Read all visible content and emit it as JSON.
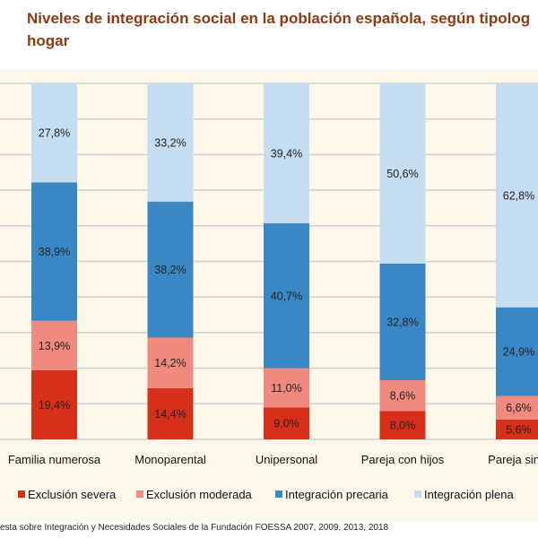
{
  "chart_data": {
    "type": "bar",
    "stacked": true,
    "title": "Niveles de integración social en la población española, según tipología de hogar",
    "title_lines": [
      "Niveles de integración social en la población española, según tipolog",
      "hogar"
    ],
    "categories": [
      "Familia numerosa",
      "Monoparental",
      "Unipersonal",
      "Pareja con hijos",
      "Pareja sin h"
    ],
    "series": [
      {
        "name": "Exclusión severa",
        "color": "#d7301a",
        "values": [
          19.4,
          14.4,
          9.0,
          8.0,
          5.6
        ],
        "labels": [
          "19,4%",
          "14,4%",
          "9,0%",
          "8,0%",
          "5,6%"
        ]
      },
      {
        "name": "Exclusión moderada",
        "color": "#f08a7e",
        "values": [
          13.9,
          14.2,
          11.0,
          8.6,
          6.6
        ],
        "labels": [
          "13,9%",
          "14,2%",
          "11,0%",
          "8,6%",
          "6,6%"
        ]
      },
      {
        "name": "Integración precaria",
        "color": "#3a87c6",
        "values": [
          38.9,
          38.2,
          40.7,
          32.8,
          24.9
        ],
        "labels": [
          "38,9%",
          "38,2%",
          "40,7%",
          "32,8%",
          "24,9%"
        ]
      },
      {
        "name": "Integración plena",
        "color": "#c5ddf0",
        "values": [
          27.8,
          33.2,
          39.4,
          50.6,
          62.8
        ],
        "labels": [
          "27,8%",
          "33,2%",
          "39,4%",
          "50,6%",
          "62,8%"
        ]
      }
    ],
    "ylim": [
      0,
      100
    ],
    "grid": true,
    "legend_position": "bottom",
    "background": "#fdf8ea"
  },
  "source": "esta sobre Integración y Necesidades Sociales de la Fundación FOESSA 2007, 2009, 2013, 2018"
}
